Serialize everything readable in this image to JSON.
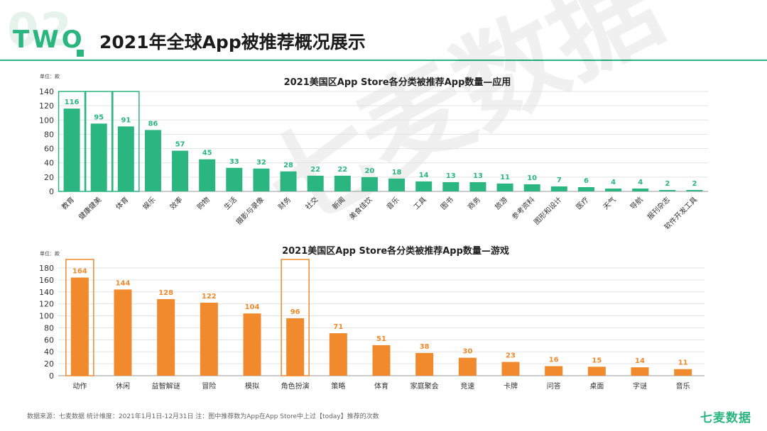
{
  "header": {
    "section_number": "02",
    "section_word": "TWO",
    "title": "2021年全球App被推荐概况展示"
  },
  "watermark": "七麦数据",
  "chart_data": [
    {
      "type": "bar",
      "title": "2021美国区App Store各分类被推荐App数量—应用",
      "unit_label": "单位：款",
      "color": "#2bb580",
      "ylim": [
        0,
        140
      ],
      "yticks": [
        0,
        20,
        40,
        60,
        80,
        100,
        120,
        140
      ],
      "categories": [
        "教育",
        "健康健美",
        "体育",
        "娱乐",
        "效率",
        "购物",
        "生活",
        "摄影与录像",
        "财务",
        "社交",
        "新闻",
        "美食佳饮",
        "音乐",
        "工具",
        "图书",
        "商务",
        "旅游",
        "参考资料",
        "图形和设计",
        "医疗",
        "天气",
        "导航",
        "报刊杂志",
        "软件开发工具"
      ],
      "values": [
        116,
        95,
        91,
        86,
        57,
        45,
        33,
        32,
        28,
        22,
        22,
        20,
        18,
        14,
        13,
        13,
        11,
        10,
        7,
        6,
        4,
        4,
        2,
        2
      ],
      "highlighted": [
        "教育",
        "健康健美",
        "体育"
      ]
    },
    {
      "type": "bar",
      "title": "2021美国区App Store各分类被推荐App数量—游戏",
      "unit_label": "单位：款",
      "color": "#f08a2c",
      "ylim": [
        0,
        180
      ],
      "yticks": [
        0,
        20,
        40,
        60,
        80,
        100,
        120,
        140,
        160,
        180
      ],
      "categories": [
        "动作",
        "休闲",
        "益智解谜",
        "冒险",
        "模拟",
        "角色扮演",
        "策略",
        "体育",
        "家庭聚会",
        "竞速",
        "卡牌",
        "问答",
        "桌面",
        "字谜",
        "音乐"
      ],
      "values": [
        164,
        144,
        128,
        122,
        104,
        96,
        71,
        51,
        38,
        30,
        23,
        16,
        15,
        14,
        11
      ],
      "highlighted": [
        "动作",
        "角色扮演"
      ]
    }
  ],
  "footer": {
    "note": "数据来源：七麦数据  统计维度：2021年1月1日-12月31日  注：图中推荐数为App在App Store中上过【today】推荐的次数",
    "brand": "七麦数据"
  }
}
